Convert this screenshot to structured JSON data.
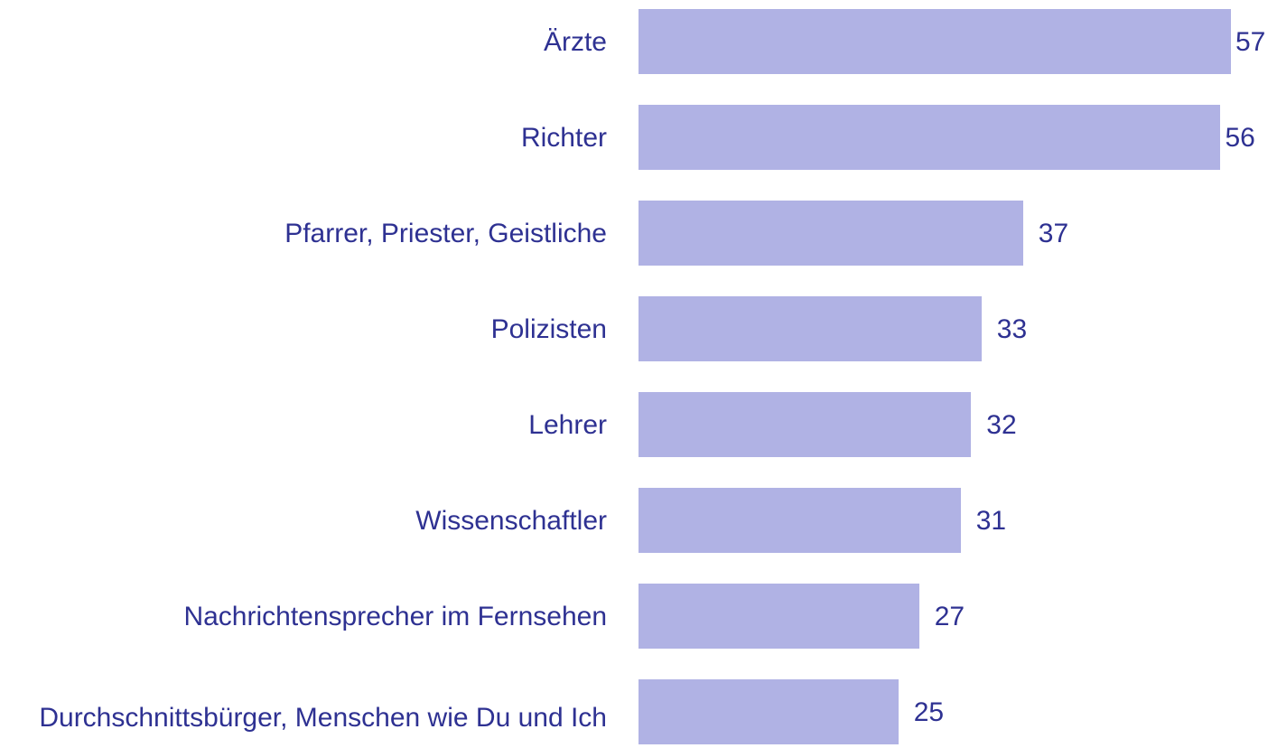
{
  "chart_data": {
    "type": "bar",
    "orientation": "horizontal",
    "categories": [
      "Ärzte",
      "Richter",
      "Pfarrer, Priester, Geistliche",
      "Polizisten",
      "Lehrer",
      "Wissenschaftler",
      "Nachrichtensprecher im Fernsehen",
      "Durchschnittsbürger, Menschen wie Du und Ich"
    ],
    "values": [
      57,
      56,
      37,
      33,
      32,
      31,
      27,
      25
    ],
    "color": "#b0b2e4",
    "label_color": "#2e3192",
    "xlim": [
      0,
      60
    ]
  }
}
